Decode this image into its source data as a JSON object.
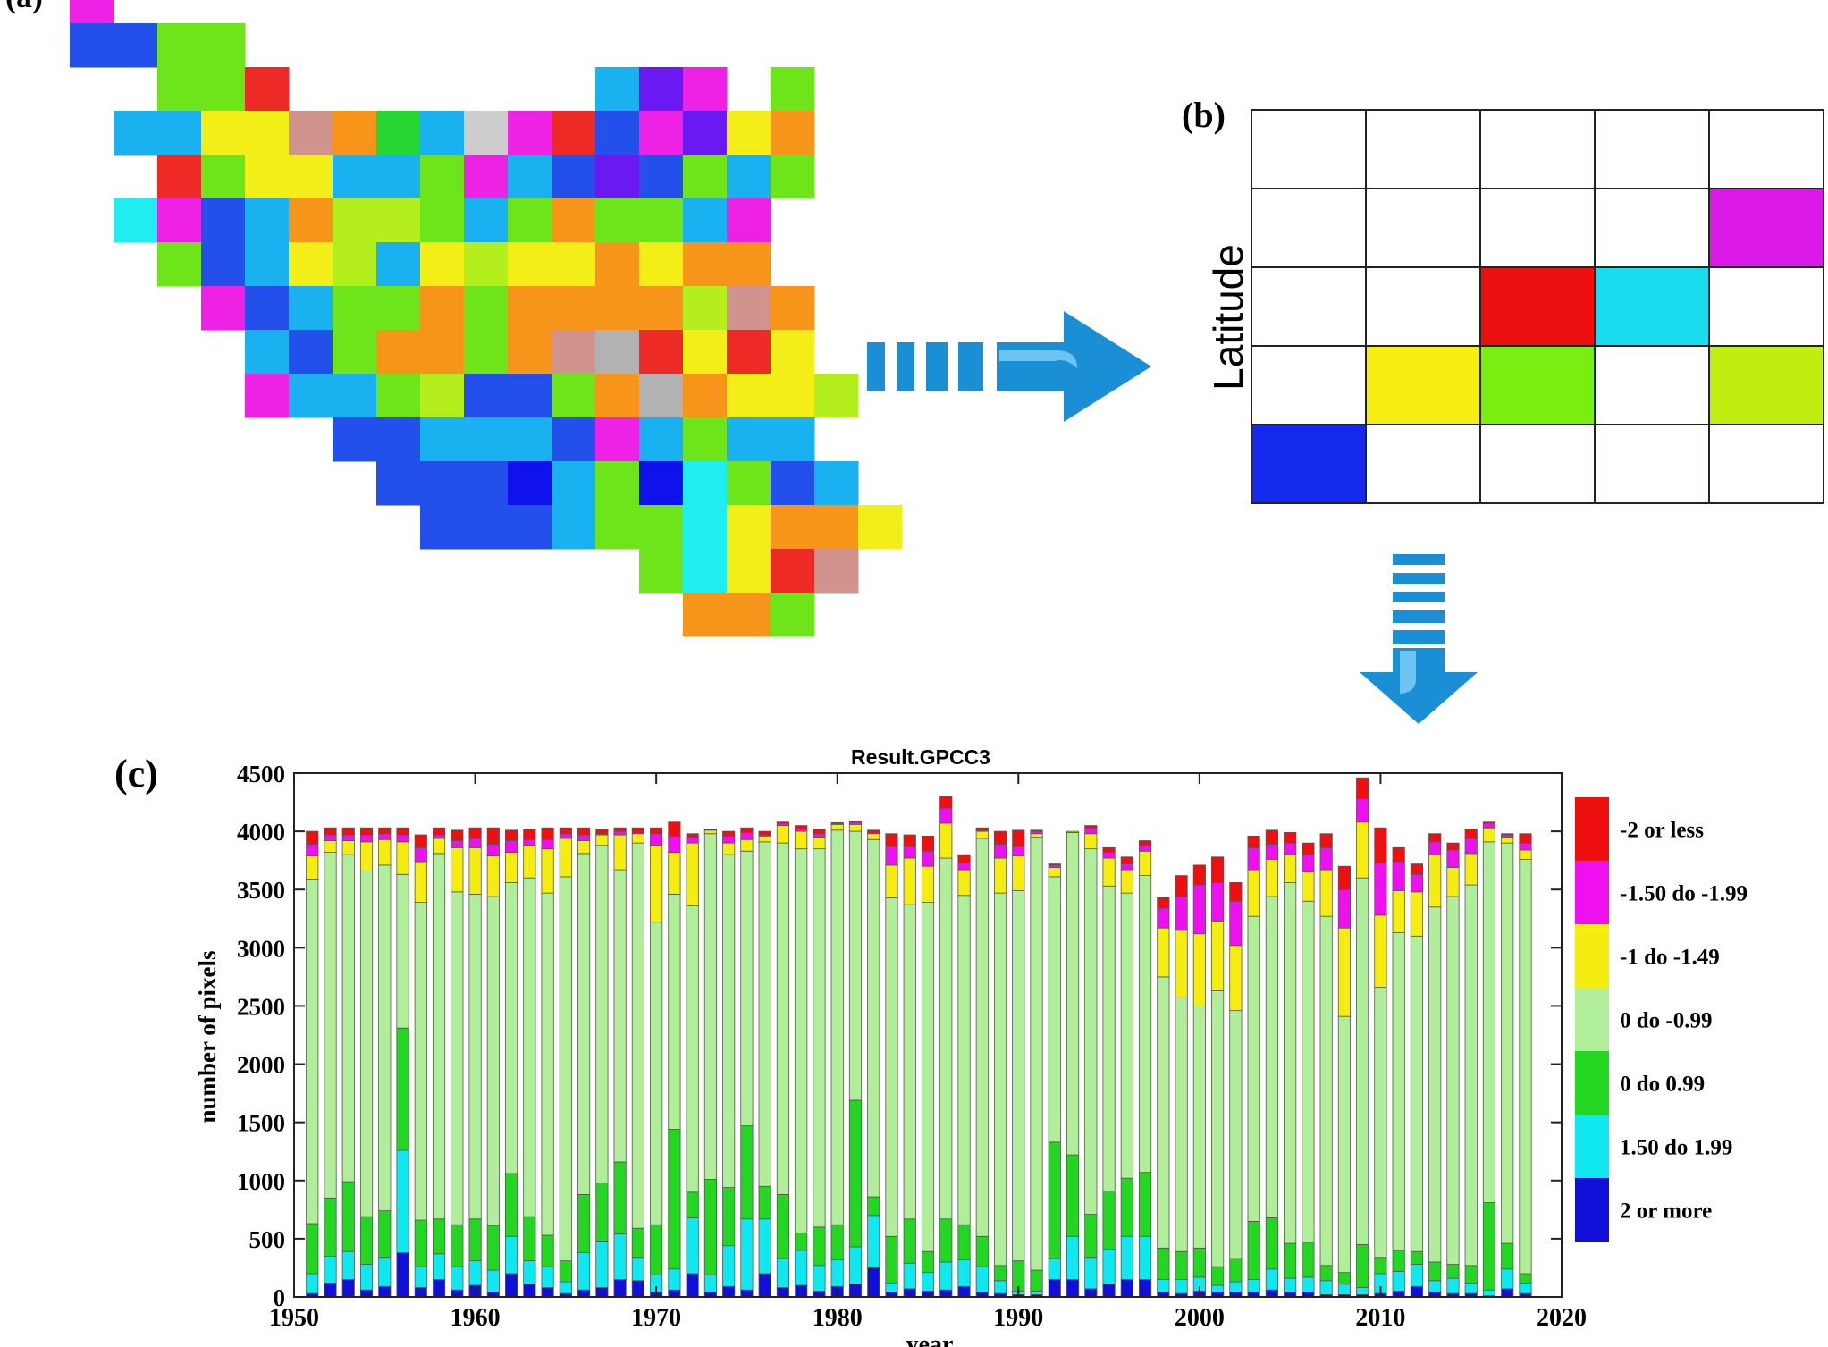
{
  "panel_a": {
    "label": "(a)",
    "grid": [
      ".M.....................",
      ".BBGG..................",
      "...GGR.......SVM.G.....",
      "..SSYYHODSAMRBMVYO.....",
      "...RGYYSSGMSBVBGSG.....",
      "..CMBSOLLGSGOGGSM......",
      "...GBSYLSYLYYOYOO......",
      "....MBSGGOGOOOOLHO.....",
      ".....SBGOOGOHKRYRY.....",
      ".....MSSGLBBGOKOYYL....",
      ".......BBSSSBMSGSS.....",
      "........BBBNSGNCGBS....",
      ".........BBBSGGCYOOY...",
      "..............GCYRH....",
      "...............OOG....."
    ],
    "palette": {
      "M": "#ee22e4",
      "B": "#2350ea",
      "S": "#19b1ef",
      "G": "#6de51a",
      "L": "#b4ee1c",
      "Y": "#f3ee18",
      "O": "#f7951a",
      "R": "#ee2a26",
      "V": "#6a1af0",
      "H": "#d1938e",
      "K": "#b2b2b2",
      "D": "#25d633",
      "C": "#1eeef0",
      "N": "#0f12ea"
    }
  },
  "panel_b": {
    "label": "(b)",
    "ylabel": "Latitude",
    "rows": 5,
    "cols": 5,
    "cells": [
      {
        "row": 1,
        "col": 4,
        "color": "#dc1ae8"
      },
      {
        "row": 2,
        "col": 2,
        "color": "#ee1010"
      },
      {
        "row": 2,
        "col": 3,
        "color": "#1adcef"
      },
      {
        "row": 3,
        "col": 1,
        "color": "#f5ee10"
      },
      {
        "row": 3,
        "col": 2,
        "color": "#7aee10"
      },
      {
        "row": 3,
        "col": 4,
        "color": "#bfee10"
      },
      {
        "row": 4,
        "col": 0,
        "color": "#1428ee"
      }
    ]
  },
  "arrow_color": "#1a8fd6",
  "chart_data": {
    "type": "bar",
    "stacked": true,
    "panel_label": "(c)",
    "title": "Result.GPCC3",
    "xlabel": "year",
    "ylabel": "number of pixels",
    "xlim": [
      1950,
      2020
    ],
    "ylim": [
      0,
      4500
    ],
    "xticks": [
      1950,
      1960,
      1970,
      1980,
      1990,
      2000,
      2010,
      2020
    ],
    "yticks": [
      0,
      500,
      1000,
      1500,
      2000,
      2500,
      3000,
      3500,
      4000,
      4500
    ],
    "grid": false,
    "legend_position": "right",
    "categories": [
      1951,
      1952,
      1953,
      1954,
      1955,
      1956,
      1957,
      1958,
      1959,
      1960,
      1961,
      1962,
      1963,
      1964,
      1965,
      1966,
      1967,
      1968,
      1969,
      1970,
      1971,
      1972,
      1973,
      1974,
      1975,
      1976,
      1977,
      1978,
      1979,
      1980,
      1981,
      1982,
      1983,
      1984,
      1985,
      1986,
      1987,
      1988,
      1989,
      1990,
      1991,
      1992,
      1993,
      1994,
      1995,
      1996,
      1997,
      1998,
      1999,
      2000,
      2001,
      2002,
      2003,
      2004,
      2005,
      2006,
      2007,
      2008,
      2009,
      2010,
      2011,
      2012,
      2013,
      2014,
      2015,
      2016,
      2017,
      2018
    ],
    "series": [
      {
        "name": "2 or more",
        "color": "#1010d8",
        "values": [
          30,
          120,
          150,
          60,
          90,
          380,
          80,
          150,
          60,
          100,
          40,
          200,
          110,
          80,
          30,
          60,
          80,
          150,
          140,
          40,
          60,
          200,
          40,
          90,
          60,
          200,
          80,
          100,
          50,
          90,
          110,
          250,
          40,
          70,
          50,
          60,
          90,
          40,
          30,
          20,
          20,
          150,
          150,
          70,
          110,
          150,
          150,
          40,
          30,
          50,
          40,
          40,
          40,
          60,
          40,
          40,
          20,
          20,
          20,
          30,
          50,
          90,
          40,
          30,
          30,
          10,
          70,
          30
        ]
      },
      {
        "name": "1.50 do 1.99",
        "color": "#10e8ef",
        "values": [
          170,
          230,
          240,
          220,
          250,
          880,
          180,
          220,
          200,
          210,
          190,
          320,
          200,
          180,
          100,
          320,
          400,
          390,
          200,
          150,
          180,
          480,
          150,
          350,
          610,
          470,
          250,
          300,
          220,
          230,
          320,
          450,
          80,
          220,
          160,
          240,
          230,
          220,
          110,
          30,
          30,
          180,
          370,
          270,
          300,
          370,
          370,
          110,
          120,
          120,
          60,
          90,
          110,
          180,
          120,
          130,
          120,
          90,
          60,
          170,
          170,
          190,
          100,
          130,
          90,
          50,
          170,
          90
        ]
      },
      {
        "name": "0 do 0.99",
        "color": "#22d622",
        "values": [
          430,
          500,
          600,
          410,
          400,
          1050,
          400,
          300,
          360,
          360,
          380,
          540,
          380,
          270,
          180,
          500,
          500,
          620,
          250,
          430,
          1200,
          220,
          820,
          500,
          800,
          280,
          550,
          150,
          330,
          300,
          1260,
          160,
          400,
          380,
          180,
          370,
          300,
          260,
          130,
          260,
          180,
          1000,
          700,
          370,
          500,
          500,
          550,
          270,
          240,
          250,
          160,
          200,
          500,
          440,
          300,
          300,
          130,
          100,
          370,
          140,
          180,
          110,
          160,
          120,
          150,
          750,
          220,
          80
        ]
      },
      {
        "name": "0 do -0.99",
        "color": "#b1ee99",
        "values": [
          2960,
          2970,
          2810,
          2970,
          2970,
          1320,
          2730,
          3140,
          2860,
          2790,
          2830,
          2500,
          2910,
          2940,
          3300,
          2930,
          2900,
          2510,
          3310,
          2600,
          2020,
          2460,
          2970,
          2860,
          2360,
          2960,
          3020,
          3300,
          3250,
          3390,
          2310,
          3070,
          2910,
          2700,
          3000,
          3100,
          2830,
          3420,
          3200,
          3180,
          3720,
          2280,
          2770,
          3140,
          2620,
          2450,
          2550,
          2330,
          2180,
          2080,
          2370,
          2130,
          2620,
          2760,
          3100,
          2930,
          3000,
          2200,
          3150,
          2320,
          2730,
          2710,
          3050,
          3160,
          3270,
          3100,
          3440,
          3560
        ]
      },
      {
        "name": "-1 do -1.49",
        "color": "#f5ec10",
        "values": [
          200,
          100,
          120,
          250,
          220,
          280,
          350,
          130,
          380,
          400,
          350,
          260,
          280,
          380,
          330,
          110,
          90,
          300,
          80,
          660,
          360,
          540,
          30,
          100,
          100,
          50,
          150,
          150,
          100,
          50,
          60,
          50,
          280,
          400,
          310,
          300,
          220,
          60,
          300,
          300,
          30,
          80,
          10,
          130,
          240,
          200,
          210,
          420,
          580,
          620,
          600,
          560,
          400,
          320,
          240,
          250,
          400,
          760,
          480,
          620,
          360,
          380,
          450,
          250,
          270,
          120,
          50,
          80
        ]
      },
      {
        "name": "-1.50 do -1.99",
        "color": "#ee10ee",
        "values": [
          100,
          50,
          50,
          60,
          50,
          60,
          120,
          30,
          60,
          80,
          100,
          100,
          50,
          80,
          40,
          50,
          10,
          30,
          10,
          100,
          140,
          50,
          5,
          60,
          60,
          10,
          20,
          20,
          30,
          10,
          20,
          10,
          160,
          100,
          130,
          130,
          60,
          10,
          120,
          80,
          20,
          20,
          0,
          50,
          50,
          50,
          50,
          170,
          290,
          420,
          330,
          380,
          190,
          130,
          100,
          150,
          190,
          330,
          200,
          450,
          250,
          150,
          110,
          150,
          130,
          40,
          20,
          60
        ]
      },
      {
        "name": "-2 or less",
        "color": "#ee1010",
        "values": [
          110,
          60,
          60,
          60,
          50,
          60,
          110,
          60,
          90,
          90,
          140,
          90,
          90,
          100,
          50,
          60,
          40,
          30,
          40,
          50,
          120,
          30,
          5,
          40,
          40,
          30,
          10,
          30,
          40,
          5,
          10,
          20,
          110,
          100,
          130,
          100,
          70,
          20,
          110,
          140,
          10,
          10,
          0,
          20,
          40,
          60,
          40,
          90,
          180,
          170,
          220,
          160,
          100,
          120,
          90,
          100,
          120,
          200,
          180,
          300,
          120,
          90,
          70,
          60,
          80,
          10,
          10,
          80
        ]
      }
    ]
  }
}
